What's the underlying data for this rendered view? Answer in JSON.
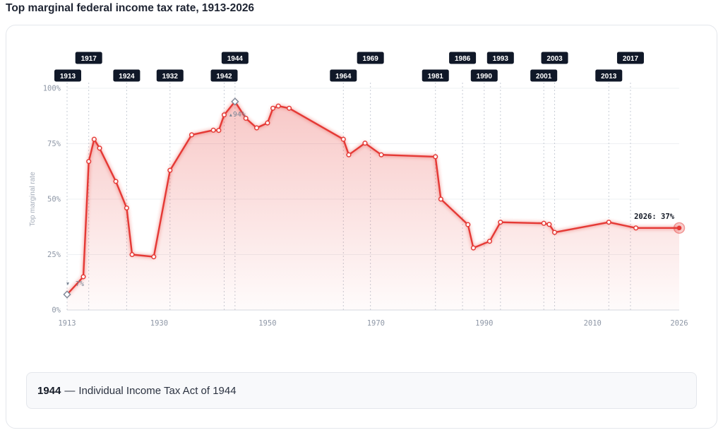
{
  "page": {
    "title": "Top marginal federal income tax rate, 1913-2026"
  },
  "caption": {
    "year": "1944",
    "separator": "—",
    "text": "Individual Income Tax Act of 1944"
  },
  "chart_data": {
    "type": "line",
    "title": "Top marginal federal income tax rate, 1913-2026",
    "xlabel": "",
    "ylabel": "Top marginal rate",
    "xlim": [
      1913,
      2026
    ],
    "ylim": [
      0,
      100
    ],
    "x_ticks": [
      1913,
      1930,
      1950,
      1970,
      1990,
      2010,
      2026
    ],
    "y_ticks": [
      {
        "value": 0,
        "label": "0%"
      },
      {
        "value": 25,
        "label": "25%"
      },
      {
        "value": 50,
        "label": "50%"
      },
      {
        "value": 75,
        "label": "75%"
      },
      {
        "value": 100,
        "label": "100%"
      }
    ],
    "grid": true,
    "series": [
      {
        "color": "#e53935",
        "points": [
          [
            1913,
            7
          ],
          [
            1916,
            15
          ],
          [
            1917,
            67
          ],
          [
            1918,
            77
          ],
          [
            1919,
            73
          ],
          [
            1922,
            58
          ],
          [
            1924,
            46
          ],
          [
            1925,
            25
          ],
          [
            1929,
            24
          ],
          [
            1932,
            63
          ],
          [
            1936,
            79
          ],
          [
            1940,
            81.1
          ],
          [
            1941,
            81
          ],
          [
            1942,
            88
          ],
          [
            1944,
            94
          ],
          [
            1946,
            86.45
          ],
          [
            1948,
            82.13
          ],
          [
            1950,
            84.36
          ],
          [
            1951,
            91
          ],
          [
            1952,
            92
          ],
          [
            1954,
            91
          ],
          [
            1964,
            77
          ],
          [
            1965,
            70
          ],
          [
            1968,
            75.25
          ],
          [
            1971,
            70
          ],
          [
            1981,
            69.13
          ],
          [
            1982,
            50
          ],
          [
            1987,
            38.5
          ],
          [
            1988,
            28
          ],
          [
            1991,
            31
          ],
          [
            1993,
            39.6
          ],
          [
            2001,
            39.1
          ],
          [
            2002,
            38.6
          ],
          [
            2003,
            35
          ],
          [
            2013,
            39.6
          ],
          [
            2018,
            37
          ],
          [
            2026,
            37
          ]
        ]
      }
    ],
    "hollow_markers": [
      {
        "x": 1913,
        "y": 7,
        "label": "7%"
      },
      {
        "x": 1944,
        "y": 94,
        "label": "94%"
      }
    ],
    "end_label": {
      "x": 2026,
      "y": 37,
      "text": "2026: 37%"
    },
    "event_years": [
      {
        "x": 1913,
        "label": "1913",
        "row": 1
      },
      {
        "x": 1917,
        "label": "1917",
        "row": 0
      },
      {
        "x": 1924,
        "label": "1924",
        "row": 1
      },
      {
        "x": 1932,
        "label": "1932",
        "row": 1
      },
      {
        "x": 1942,
        "label": "1942",
        "row": 1
      },
      {
        "x": 1944,
        "label": "1944",
        "row": 0
      },
      {
        "x": 1964,
        "label": "1964",
        "row": 1
      },
      {
        "x": 1969,
        "label": "1969",
        "row": 0
      },
      {
        "x": 1981,
        "label": "1981",
        "row": 1
      },
      {
        "x": 1986,
        "label": "1986",
        "row": 0
      },
      {
        "x": 1990,
        "label": "1990",
        "row": 1
      },
      {
        "x": 1993,
        "label": "1993",
        "row": 0
      },
      {
        "x": 2001,
        "label": "2001",
        "row": 1
      },
      {
        "x": 2003,
        "label": "2003",
        "row": 0
      },
      {
        "x": 2013,
        "label": "2013",
        "row": 1
      },
      {
        "x": 2017,
        "label": "2017",
        "row": 0
      }
    ],
    "selected_event": 1944
  }
}
